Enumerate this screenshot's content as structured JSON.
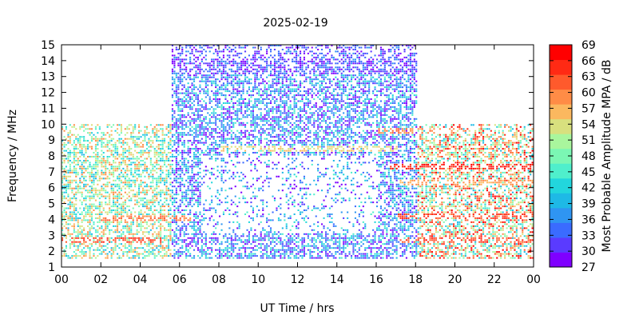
{
  "chart_data": {
    "type": "heatmap",
    "title": "2025-02-19",
    "xlabel": "UT Time / hrs",
    "ylabel": "Frequency / MHz",
    "xlim": [
      0,
      24
    ],
    "ylim": [
      1,
      15
    ],
    "x_ticks": [
      "00",
      "02",
      "04",
      "06",
      "08",
      "10",
      "12",
      "14",
      "16",
      "18",
      "20",
      "22",
      "00"
    ],
    "y_ticks": [
      "1",
      "2",
      "3",
      "4",
      "5",
      "6",
      "7",
      "8",
      "9",
      "10",
      "11",
      "12",
      "13",
      "14",
      "15"
    ],
    "colorbar": {
      "label": "Most Probable Amplitude MPA / dB",
      "range": [
        27,
        69
      ],
      "ticks": [
        "69",
        "66",
        "63",
        "60",
        "57",
        "54",
        "51",
        "48",
        "45",
        "42",
        "39",
        "36",
        "33",
        "30",
        "27"
      ],
      "colors": [
        "#7f00ff",
        "#5a3bff",
        "#3a6bff",
        "#2f95f2",
        "#1eb9e6",
        "#22d6dd",
        "#4fefcc",
        "#7bf7b4",
        "#a9f69d",
        "#d8e07e",
        "#fbb85f",
        "#ff8c46",
        "#ff5a2c",
        "#ff2a14",
        "#ff0000"
      ]
    },
    "coverage": [
      {
        "time_range": [
          0,
          5.5
        ],
        "freq_range": [
          1.5,
          10
        ],
        "mpa_typical": [
          39,
          60
        ]
      },
      {
        "time_range": [
          5.5,
          18
        ],
        "freq_range": [
          1.5,
          15
        ],
        "mpa_typical": [
          27,
          45
        ]
      },
      {
        "time_range": [
          18,
          24
        ],
        "freq_range": [
          1.5,
          10
        ],
        "mpa_typical": [
          39,
          69
        ]
      }
    ],
    "bands": [
      {
        "freq": 2.6,
        "time_range": [
          0,
          5
        ],
        "mpa": 66
      },
      {
        "freq": 4.0,
        "time_range": [
          2,
          6.5
        ],
        "mpa": 63
      },
      {
        "freq": 7.3,
        "time_range": [
          16.5,
          24
        ],
        "mpa": 68
      },
      {
        "freq": 4.1,
        "time_range": [
          17,
          24
        ],
        "mpa": 66
      },
      {
        "freq": 2.6,
        "time_range": [
          17,
          24
        ],
        "mpa": 65
      },
      {
        "freq": 6.2,
        "time_range": [
          17,
          24
        ],
        "mpa": 60
      },
      {
        "freq": 8.4,
        "time_range": [
          8,
          17
        ],
        "mpa": 57
      },
      {
        "freq": 9.5,
        "time_range": [
          16,
          20
        ],
        "mpa": 62
      }
    ],
    "grid": false,
    "legend": "colorbar-right"
  }
}
